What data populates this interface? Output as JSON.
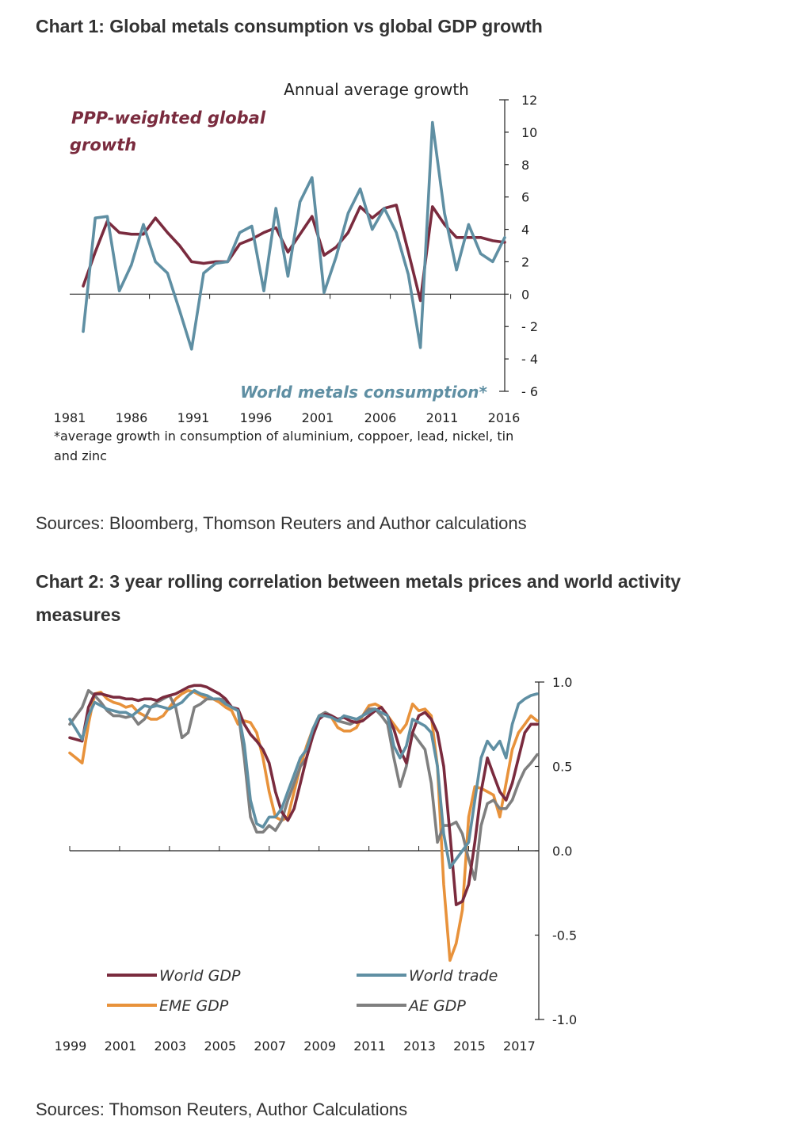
{
  "chart1": {
    "heading": "Chart 1: Global metals consumption vs global GDP growth",
    "source": "Sources: Bloomberg, Thomson Reuters and Author calculations",
    "chart_data": {
      "type": "line",
      "title": "Chart 1: Global metals consumption vs global GDP growth",
      "ylabel": "Annual average growth",
      "ylim": [
        -6,
        12
      ],
      "yticks": [
        "12",
        "10",
        "8",
        "6",
        "4",
        "2",
        "0",
        "-2",
        "-4",
        "-6"
      ],
      "xticks": [
        "1981",
        "1986",
        "1991",
        "1996",
        "2001",
        "2006",
        "2011",
        "2016"
      ],
      "x": [
        1981,
        1982,
        1983,
        1984,
        1985,
        1986,
        1987,
        1988,
        1989,
        1990,
        1991,
        1992,
        1993,
        1994,
        1995,
        1996,
        1997,
        1998,
        1999,
        2000,
        2001,
        2002,
        2003,
        2004,
        2005,
        2006,
        2007,
        2008,
        2009,
        2010,
        2011,
        2012,
        2013,
        2014,
        2015,
        2016
      ],
      "series": [
        {
          "name": "PPP-weighted global growth",
          "color": "#7a2b3e",
          "values": [
            0.5,
            2.6,
            4.5,
            3.8,
            3.7,
            3.7,
            4.7,
            3.8,
            3.0,
            2.0,
            1.9,
            2.0,
            2.0,
            3.1,
            3.4,
            3.8,
            4.1,
            2.6,
            3.7,
            4.8,
            2.4,
            2.9,
            3.8,
            5.4,
            4.7,
            5.3,
            5.5,
            2.6,
            -0.4,
            5.4,
            4.3,
            3.5,
            3.5,
            3.5,
            3.3,
            3.2
          ]
        },
        {
          "name": "World metals consumption*",
          "color": "#5f8fa3",
          "values": [
            -2.3,
            4.7,
            4.8,
            0.2,
            1.8,
            4.3,
            2.0,
            1.3,
            -1.0,
            -3.4,
            1.3,
            1.9,
            2.0,
            3.8,
            4.2,
            0.2,
            5.3,
            1.1,
            5.7,
            7.2,
            0.1,
            2.3,
            5.0,
            6.5,
            4.0,
            5.3,
            3.8,
            1.2,
            -3.3,
            10.6,
            5.0,
            1.5,
            4.3,
            2.5,
            2.0,
            3.5
          ]
        }
      ],
      "annotations": [
        "PPP-weighted global growth",
        "World metals consumption*"
      ],
      "footnote": "*average growth in consumption of aluminium, coppoer, lead, nickel, tin and zinc"
    }
  },
  "chart2": {
    "heading": "Chart 2: 3 year rolling correlation between metals prices and world activity measures",
    "source": "Sources: Thomson Reuters, Author Calculations",
    "chart_data": {
      "type": "line",
      "title": "Chart 2: 3 year rolling correlation between metals prices and world activity measures",
      "ylim": [
        -1.0,
        1.0
      ],
      "yticks": [
        "1.0",
        "0.5",
        "0.0",
        "-0.5",
        "-1.0"
      ],
      "xticks": [
        "1999",
        "2001",
        "2003",
        "2005",
        "2007",
        "2009",
        "2011",
        "2013",
        "2015",
        "2017"
      ],
      "xrange": [
        1999,
        2017.75
      ],
      "x": [
        1999,
        1999.25,
        1999.5,
        1999.75,
        2000,
        2000.25,
        2000.5,
        2000.75,
        2001,
        2001.25,
        2001.5,
        2001.75,
        2002,
        2002.25,
        2002.5,
        2002.75,
        2003,
        2003.25,
        2003.5,
        2003.75,
        2004,
        2004.25,
        2004.5,
        2004.75,
        2005,
        2005.25,
        2005.5,
        2005.75,
        2006,
        2006.25,
        2006.5,
        2006.75,
        2007,
        2007.25,
        2007.5,
        2007.75,
        2008,
        2008.25,
        2008.5,
        2008.75,
        2009,
        2009.25,
        2009.5,
        2009.75,
        2010,
        2010.25,
        2010.5,
        2010.75,
        2011,
        2011.25,
        2011.5,
        2011.75,
        2012,
        2012.25,
        2012.5,
        2012.75,
        2013,
        2013.25,
        2013.5,
        2013.75,
        2014,
        2014.25,
        2014.5,
        2014.75,
        2015,
        2015.25,
        2015.5,
        2015.75,
        2016,
        2016.25,
        2016.5,
        2016.75,
        2017,
        2017.25,
        2017.5,
        2017.75
      ],
      "series": [
        {
          "name": "World GDP",
          "color": "#7a2b3e",
          "values": [
            0.67,
            0.66,
            0.65,
            0.85,
            0.93,
            0.93,
            0.92,
            0.91,
            0.91,
            0.9,
            0.9,
            0.89,
            0.9,
            0.9,
            0.89,
            0.91,
            0.92,
            0.93,
            0.95,
            0.97,
            0.98,
            0.98,
            0.97,
            0.95,
            0.93,
            0.9,
            0.85,
            0.84,
            0.75,
            0.69,
            0.65,
            0.6,
            0.52,
            0.35,
            0.23,
            0.18,
            0.25,
            0.4,
            0.55,
            0.68,
            0.78,
            0.81,
            0.8,
            0.78,
            0.79,
            0.77,
            0.76,
            0.77,
            0.8,
            0.83,
            0.85,
            0.8,
            0.72,
            0.6,
            0.52,
            0.7,
            0.8,
            0.82,
            0.78,
            0.7,
            0.5,
            0.1,
            -0.32,
            -0.3,
            -0.2,
            0.05,
            0.35,
            0.55,
            0.45,
            0.35,
            0.3,
            0.4,
            0.55,
            0.7,
            0.75,
            0.75
          ]
        },
        {
          "name": "World trade",
          "color": "#5f8fa3",
          "values": [
            0.78,
            0.72,
            0.66,
            0.8,
            0.88,
            0.86,
            0.84,
            0.83,
            0.82,
            0.82,
            0.8,
            0.83,
            0.86,
            0.85,
            0.86,
            0.85,
            0.84,
            0.86,
            0.88,
            0.92,
            0.95,
            0.93,
            0.92,
            0.9,
            0.9,
            0.87,
            0.85,
            0.83,
            0.63,
            0.3,
            0.16,
            0.14,
            0.2,
            0.2,
            0.25,
            0.35,
            0.45,
            0.55,
            0.6,
            0.72,
            0.8,
            0.8,
            0.79,
            0.77,
            0.8,
            0.79,
            0.78,
            0.8,
            0.82,
            0.84,
            0.82,
            0.8,
            0.62,
            0.55,
            0.62,
            0.78,
            0.76,
            0.74,
            0.7,
            0.5,
            0.1,
            -0.1,
            -0.05,
            0.0,
            0.05,
            0.3,
            0.55,
            0.65,
            0.6,
            0.65,
            0.55,
            0.75,
            0.87,
            0.9,
            0.92,
            0.93
          ]
        },
        {
          "name": "EME GDP",
          "color": "#e8923b",
          "values": [
            0.58,
            0.55,
            0.52,
            0.75,
            0.93,
            0.94,
            0.9,
            0.88,
            0.87,
            0.85,
            0.86,
            0.82,
            0.8,
            0.78,
            0.78,
            0.8,
            0.85,
            0.9,
            0.93,
            0.95,
            0.94,
            0.92,
            0.9,
            0.9,
            0.88,
            0.85,
            0.83,
            0.75,
            0.77,
            0.76,
            0.7,
            0.55,
            0.35,
            0.2,
            0.18,
            0.2,
            0.35,
            0.5,
            0.62,
            0.72,
            0.8,
            0.81,
            0.79,
            0.73,
            0.71,
            0.71,
            0.73,
            0.8,
            0.86,
            0.87,
            0.85,
            0.8,
            0.75,
            0.7,
            0.75,
            0.87,
            0.83,
            0.84,
            0.8,
            0.5,
            -0.2,
            -0.65,
            -0.55,
            -0.35,
            0.2,
            0.38,
            0.37,
            0.35,
            0.33,
            0.2,
            0.4,
            0.6,
            0.7,
            0.75,
            0.8,
            0.77
          ]
        },
        {
          "name": "AE GDP",
          "color": "#7f7f7f",
          "values": [
            0.75,
            0.8,
            0.85,
            0.95,
            0.92,
            0.88,
            0.83,
            0.8,
            0.8,
            0.79,
            0.8,
            0.75,
            0.78,
            0.85,
            0.88,
            0.9,
            0.92,
            0.85,
            0.67,
            0.7,
            0.85,
            0.87,
            0.9,
            0.9,
            0.9,
            0.89,
            0.85,
            0.83,
            0.55,
            0.2,
            0.11,
            0.11,
            0.15,
            0.12,
            0.18,
            0.3,
            0.4,
            0.5,
            0.55,
            0.7,
            0.8,
            0.82,
            0.8,
            0.77,
            0.76,
            0.75,
            0.77,
            0.8,
            0.84,
            0.84,
            0.8,
            0.75,
            0.55,
            0.38,
            0.5,
            0.7,
            0.65,
            0.6,
            0.4,
            0.05,
            0.15,
            0.15,
            0.17,
            0.1,
            -0.05,
            -0.17,
            0.15,
            0.28,
            0.3,
            0.25,
            0.25,
            0.3,
            0.4,
            0.48,
            0.52,
            0.57
          ]
        }
      ],
      "legend": [
        "World GDP",
        "World trade",
        "EME GDP",
        "AE GDP"
      ],
      "legend_position": "bottom"
    }
  }
}
